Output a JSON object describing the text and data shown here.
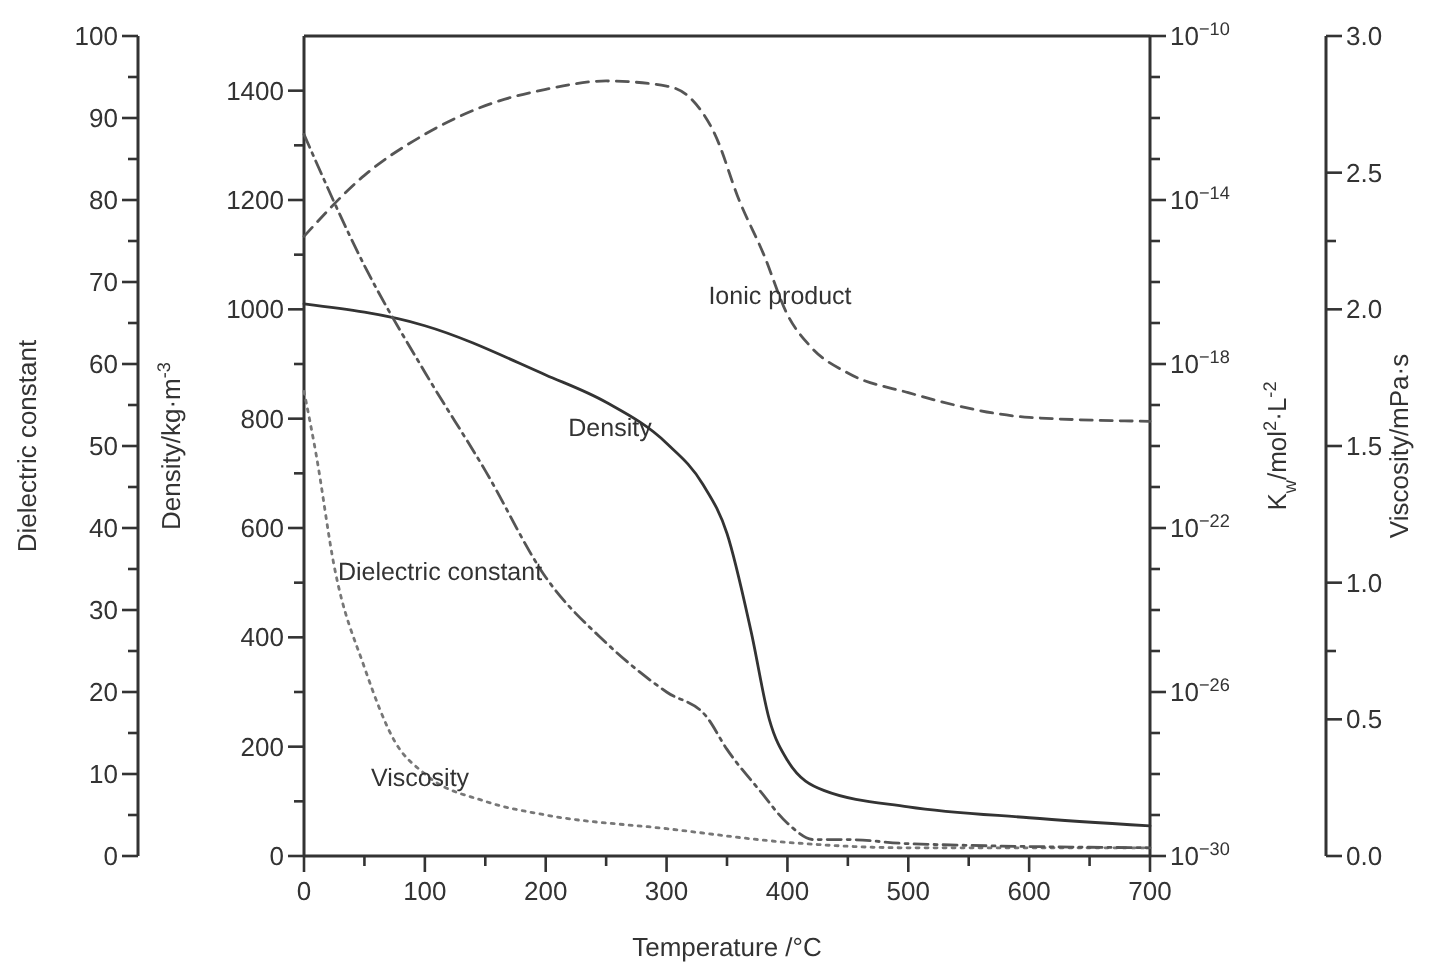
{
  "chart_data": [
    {
      "type": "line",
      "xlabel": "Temperature /°C",
      "ylabel": "Density/kg·m$^{-3}$",
      "y2label": "K$_{w}$/mol$^{2}$·L$^{-2}$",
      "y3label": "Viscosity/mPa·s",
      "xlim": [
        0,
        700
      ],
      "xticks": [
        0,
        {
          "value": 50,
          "label": null
        },
        100,
        {
          "value": 150,
          "label": null
        },
        200,
        {
          "value": 250,
          "label": null
        },
        300,
        {
          "value": 350,
          "label": null
        },
        400,
        {
          "value": 450,
          "label": null
        },
        500,
        {
          "value": 550,
          "label": null
        },
        600,
        {
          "value": 650,
          "label": null
        },
        700
      ],
      "ylim": [
        0,
        1500
      ],
      "yticks": [
        0,
        {
          "value": 100,
          "label": null
        },
        200,
        {
          "value": 300,
          "label": null
        },
        400,
        {
          "value": 500,
          "label": null
        },
        600,
        {
          "value": 700,
          "label": null
        },
        800,
        {
          "value": 900,
          "label": null
        },
        1000,
        {
          "value": 1100,
          "label": null
        },
        1200,
        {
          "value": 1300,
          "label": null
        },
        1400
      ],
      "log": "y2",
      "y2lim": [
        1e-30,
        1e-10
      ],
      "y2ticks": [
        {
          "value": 1e-30,
          "label": "10$^{−30}$"
        },
        {
          "value": 1e-29,
          "label": null
        },
        {
          "value": 1e-28,
          "label": null
        },
        {
          "value": 1e-27,
          "label": null
        },
        {
          "value": 1e-26,
          "label": "10$^{−26}$"
        },
        {
          "value": 1e-25,
          "label": null
        },
        {
          "value": 1e-24,
          "label": null
        },
        {
          "value": 1e-23,
          "label": null
        },
        {
          "value": 1e-22,
          "label": "10$^{−22}$"
        },
        {
          "value": 1e-21,
          "label": null
        },
        {
          "value": 1e-20,
          "label": null
        },
        {
          "value": 1e-19,
          "label": null
        },
        {
          "value": 1e-18,
          "label": "10$^{−18}$"
        },
        {
          "value": 1e-17,
          "label": null
        },
        {
          "value": 1e-16,
          "label": null
        },
        {
          "value": 1e-15,
          "label": null
        },
        {
          "value": 1e-14,
          "label": "10$^{−14}$"
        },
        {
          "value": 1e-13,
          "label": null
        },
        {
          "value": 1e-12,
          "label": null
        },
        {
          "value": 1e-11,
          "label": null
        },
        {
          "value": 1e-10,
          "label": "10$^{−10}$"
        }
      ],
      "y3lim": [
        0,
        3
      ],
      "y3ticks": [
        {
          "value": 0,
          "label": "0.0"
        },
        {
          "value": 0.5,
          "label": "0.5"
        },
        {
          "value": 0.75,
          "label": null
        },
        {
          "value": 1,
          "label": "1.0"
        },
        {
          "value": 1.5,
          "label": "1.5"
        },
        {
          "value": 2,
          "label": "2.0"
        },
        {
          "value": 2.25,
          "label": null
        },
        {
          "value": 2.5,
          "label": "2.5"
        },
        {
          "value": 3,
          "label": "3.0"
        }
      ],
      "grid": false,
      "series": [
        {
          "name": "Density",
          "color": "#333333",
          "line_style": "solid",
          "x": [
            0,
            100,
            200,
            250,
            300,
            330,
            350,
            370,
            385,
            400,
            430,
            500,
            600,
            700
          ],
          "values": [
            1010,
            970,
            880,
            830,
            755,
            680,
            590,
            410,
            250,
            175,
            120,
            90,
            70,
            55
          ]
        },
        {
          "name": "Ionic product",
          "color": "#555555",
          "line_style": "dashed",
          "axis": "y2",
          "x": [
            0,
            50,
            100,
            150,
            200,
            250,
            300,
            320,
            340,
            360,
            380,
            400,
            420,
            450,
            500,
            600,
            700
          ],
          "values": [
            1.3e-15,
            4e-14,
            4e-13,
            2e-12,
            5e-12,
            8e-12,
            6e-12,
            3e-12,
            4e-13,
            1e-14,
            5e-16,
            1.6e-17,
            2.5e-18,
            6e-19,
            2e-19,
            5e-20,
            4e-20
          ]
        },
        {
          "name": "Viscosity",
          "color": "#777777",
          "line_style": "dotted",
          "axis": "y3",
          "x": [
            0,
            10,
            25,
            50,
            75,
            100,
            150,
            200,
            300,
            400,
            500,
            700
          ],
          "values": [
            1.7,
            1.47,
            1.06,
            0.69,
            0.42,
            0.3,
            0.2,
            0.15,
            0.1,
            0.05,
            0.03,
            0.03
          ]
        }
      ]
    },
    {
      "type": "line",
      "ylabel": "Dielectric constant",
      "xlim": [
        0,
        700
      ],
      "ylim": [
        0,
        100
      ],
      "yticks": [
        0,
        {
          "value": 5,
          "label": null
        },
        10,
        {
          "value": 15,
          "label": null
        },
        20,
        {
          "value": 25,
          "label": null
        },
        30,
        {
          "value": 35,
          "label": null
        },
        40,
        {
          "value": 45,
          "label": null
        },
        50,
        {
          "value": 55,
          "label": null
        },
        60,
        {
          "value": 65,
          "label": null
        },
        70,
        {
          "value": 75,
          "label": null
        },
        80,
        {
          "value": 85,
          "label": null
        },
        90,
        {
          "value": 95,
          "label": null
        },
        100
      ],
      "tick_labels": "y",
      "series": [
        {
          "name": "Dielectric constant",
          "color": "#555555",
          "line_style": "dashdot",
          "x": [
            0,
            50,
            100,
            150,
            200,
            250,
            300,
            333,
            350,
            377,
            400,
            422,
            450,
            500,
            700
          ],
          "values": [
            88,
            72,
            59,
            47,
            34,
            26,
            20,
            17,
            13,
            8,
            4,
            2,
            2,
            1.5,
            1
          ]
        }
      ]
    }
  ]
}
